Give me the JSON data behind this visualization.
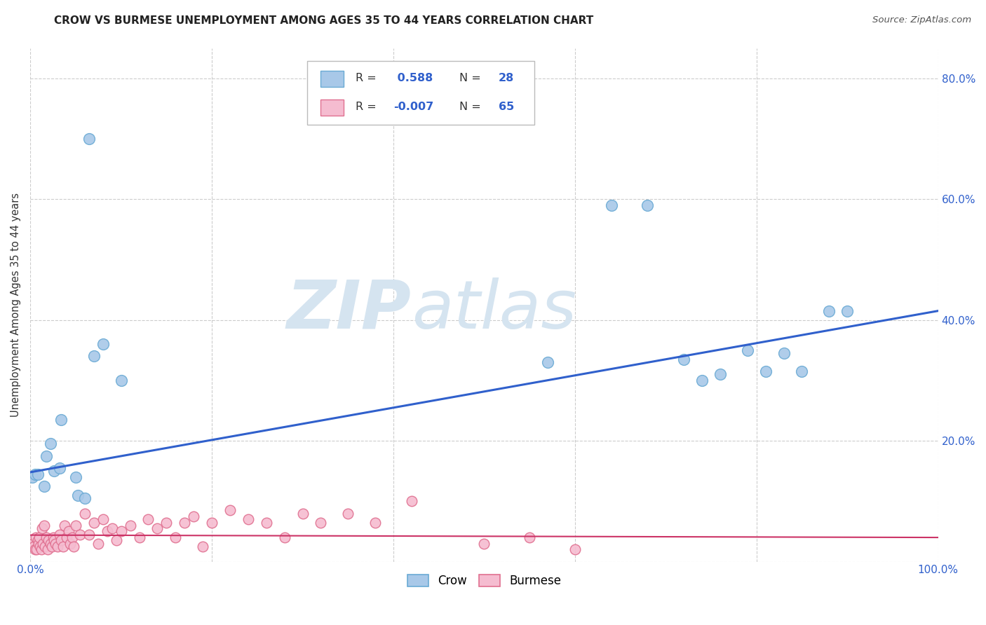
{
  "title": "CROW VS BURMESE UNEMPLOYMENT AMONG AGES 35 TO 44 YEARS CORRELATION CHART",
  "source": "Source: ZipAtlas.com",
  "ylabel": "Unemployment Among Ages 35 to 44 years",
  "xlim": [
    0.0,
    1.0
  ],
  "ylim": [
    0.0,
    0.85
  ],
  "x_ticks": [
    0.0,
    0.2,
    0.4,
    0.6,
    0.8,
    1.0
  ],
  "x_tick_labels": [
    "0.0%",
    "",
    "",
    "",
    "",
    "100.0%"
  ],
  "y_ticks": [
    0.0,
    0.2,
    0.4,
    0.6,
    0.8
  ],
  "y_tick_labels_right": [
    "",
    "20.0%",
    "40.0%",
    "60.0%",
    "80.0%"
  ],
  "crow_R": 0.588,
  "crow_N": 28,
  "burmese_R": -0.007,
  "burmese_N": 65,
  "crow_color": "#a8c8e8",
  "crow_edge_color": "#6aaad4",
  "burmese_color": "#f5bcd0",
  "burmese_edge_color": "#e07090",
  "crow_line_color": "#3060cc",
  "burmese_line_color": "#cc3366",
  "burmese_line_style": "-",
  "grid_color": "#cccccc",
  "background_color": "#ffffff",
  "watermark_color": "#d5e4f0",
  "crow_x": [
    0.018,
    0.022,
    0.026,
    0.032,
    0.034,
    0.05,
    0.052,
    0.06,
    0.065,
    0.07,
    0.08,
    0.1,
    0.57,
    0.64,
    0.68,
    0.72,
    0.74,
    0.76,
    0.79,
    0.81,
    0.83,
    0.85,
    0.88,
    0.9,
    0.002,
    0.005,
    0.008,
    0.015
  ],
  "crow_y": [
    0.175,
    0.195,
    0.15,
    0.155,
    0.235,
    0.14,
    0.11,
    0.105,
    0.7,
    0.34,
    0.36,
    0.3,
    0.33,
    0.59,
    0.59,
    0.335,
    0.3,
    0.31,
    0.35,
    0.315,
    0.345,
    0.315,
    0.415,
    0.415,
    0.14,
    0.145,
    0.145,
    0.125
  ],
  "burmese_x": [
    0.002,
    0.004,
    0.005,
    0.006,
    0.007,
    0.008,
    0.009,
    0.01,
    0.011,
    0.012,
    0.013,
    0.014,
    0.015,
    0.016,
    0.018,
    0.019,
    0.02,
    0.022,
    0.024,
    0.025,
    0.026,
    0.028,
    0.03,
    0.032,
    0.034,
    0.036,
    0.038,
    0.04,
    0.042,
    0.044,
    0.046,
    0.048,
    0.05,
    0.055,
    0.06,
    0.065,
    0.07,
    0.075,
    0.08,
    0.085,
    0.09,
    0.095,
    0.1,
    0.11,
    0.12,
    0.13,
    0.14,
    0.15,
    0.16,
    0.17,
    0.18,
    0.19,
    0.2,
    0.22,
    0.24,
    0.26,
    0.28,
    0.3,
    0.32,
    0.35,
    0.38,
    0.42,
    0.5,
    0.55,
    0.6
  ],
  "burmese_y": [
    0.03,
    0.025,
    0.02,
    0.04,
    0.02,
    0.035,
    0.03,
    0.04,
    0.025,
    0.02,
    0.055,
    0.03,
    0.06,
    0.025,
    0.04,
    0.02,
    0.035,
    0.03,
    0.025,
    0.04,
    0.035,
    0.03,
    0.025,
    0.045,
    0.035,
    0.025,
    0.06,
    0.04,
    0.05,
    0.03,
    0.04,
    0.025,
    0.06,
    0.045,
    0.08,
    0.045,
    0.065,
    0.03,
    0.07,
    0.05,
    0.055,
    0.035,
    0.05,
    0.06,
    0.04,
    0.07,
    0.055,
    0.065,
    0.04,
    0.065,
    0.075,
    0.025,
    0.065,
    0.085,
    0.07,
    0.065,
    0.04,
    0.08,
    0.065,
    0.08,
    0.065,
    0.1,
    0.03,
    0.04,
    0.02
  ],
  "crow_line_x": [
    0.0,
    1.0
  ],
  "crow_line_y": [
    0.148,
    0.415
  ],
  "burmese_line_x": [
    0.0,
    1.0
  ],
  "burmese_line_y": [
    0.044,
    0.04
  ]
}
